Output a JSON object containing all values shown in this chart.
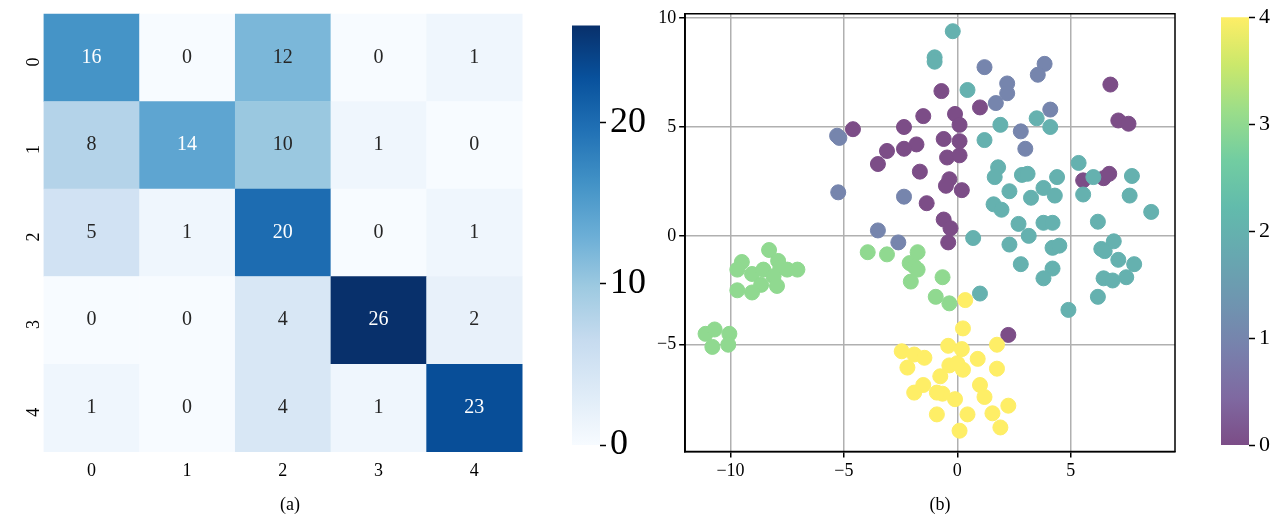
{
  "chart_data": [
    {
      "type": "heatmap",
      "categories": [
        "0",
        "1",
        "2",
        "3",
        "4"
      ],
      "y_categories": [
        "0",
        "1",
        "2",
        "3",
        "4"
      ],
      "cells": [
        [
          16,
          0,
          12,
          0,
          1
        ],
        [
          8,
          14,
          10,
          1,
          0
        ],
        [
          5,
          1,
          20,
          0,
          1
        ],
        [
          0,
          0,
          4,
          26,
          2
        ],
        [
          1,
          0,
          4,
          1,
          23
        ]
      ],
      "clim": [
        0,
        26
      ],
      "cticks": [
        0,
        10,
        20
      ],
      "data_labels": true,
      "annotations": [
        "(a)"
      ]
    },
    {
      "type": "scatter",
      "marker": "circle",
      "grid": true,
      "xlim": [
        -12,
        9.6
      ],
      "ylim": [
        -9.9,
        10.2
      ],
      "xticks": [
        -10,
        -5,
        0,
        5
      ],
      "yticks": [
        -5,
        0,
        5,
        10
      ],
      "clim": [
        0,
        4
      ],
      "cticks": [
        0,
        1,
        2,
        3,
        4
      ],
      "annotations": [
        "(b)"
      ],
      "x": [
        -0.7,
        -0.1,
        -1.5,
        -2.35,
        -4.6,
        -0.6,
        -1.8,
        -2.35,
        -3.1,
        -3.5,
        -0.45,
        0.1,
        -1.65,
        -0.35,
        -0.5,
        0.2,
        -1.35,
        -0.6,
        -0.3,
        -0.4,
        6.75,
        1.0,
        0.1,
        7.1,
        7.55,
        0.1,
        5.55,
        6.45,
        6.7,
        2.25,
        -5.3,
        -5.2,
        -5.25,
        -2.35,
        -3.5,
        -2.6,
        1.2,
        3.85,
        3.55,
        2.2,
        2.2,
        1.7,
        4.1,
        2.8,
        3.0,
        -0.2,
        -1.0,
        -1.0,
        0.45,
        1.9,
        3.5,
        4.1,
        1.2,
        5.35,
        1.8,
        1.65,
        2.85,
        3.1,
        4.4,
        6.0,
        7.7,
        2.3,
        3.25,
        3.8,
        4.3,
        5.55,
        7.6,
        1.6,
        1.95,
        8.55,
        2.7,
        3.8,
        4.2,
        6.2,
        3.15,
        0.7,
        2.3,
        4.2,
        4.5,
        6.35,
        6.5,
        6.9,
        7.1,
        7.8,
        2.8,
        4.2,
        3.8,
        6.45,
        6.85,
        7.45,
        6.2,
        4.9,
        1.0,
        -8.3,
        -9.5,
        -9.7,
        -9.05,
        -8.55,
        -7.9,
        -7.8,
        -7.5,
        -7.05,
        -8.1,
        -8.65,
        -7.95,
        -9.7,
        -9.05,
        -11.1,
        -10.7,
        -10.05,
        -10.1,
        -10.8,
        -3.95,
        -3.1,
        -1.75,
        -2.1,
        -1.9,
        -1.75,
        -2.05,
        -0.65,
        -0.95,
        -0.35,
        0.35,
        0.25,
        1.75,
        -0.4,
        0.2,
        0.9,
        -0.35,
        0.25,
        0.0,
        1.75,
        1.0,
        1.2,
        -0.1,
        -0.65,
        2.25,
        1.55,
        1.9,
        0.45,
        0.1,
        -2.45,
        -1.9,
        -1.45,
        -2.2,
        -1.5,
        -1.9,
        -0.9,
        -0.75,
        -0.9
      ],
      "values": [
        6.65,
        5.6,
        5.5,
        5.0,
        4.9,
        4.45,
        4.2,
        4.0,
        3.9,
        3.3,
        3.6,
        3.7,
        2.95,
        2.6,
        2.3,
        2.1,
        1.5,
        0.75,
        0.35,
        -0.3,
        6.95,
        5.9,
        5.1,
        5.3,
        5.15,
        4.35,
        2.55,
        2.65,
        2.85,
        -4.55,
        4.6,
        4.5,
        2.0,
        1.8,
        0.25,
        -0.3,
        7.75,
        7.9,
        7.4,
        7.0,
        6.55,
        6.1,
        5.8,
        4.8,
        4.0,
        9.4,
        8.2,
        8.0,
        6.7,
        5.1,
        5.4,
        5.0,
        4.4,
        3.35,
        3.15,
        2.7,
        2.8,
        2.85,
        2.7,
        2.7,
        2.75,
        2.05,
        1.75,
        2.2,
        1.85,
        1.9,
        1.85,
        1.45,
        1.2,
        1.1,
        0.55,
        0.6,
        0.6,
        0.65,
        0.0,
        -0.1,
        -0.4,
        -0.55,
        -0.45,
        -0.6,
        -0.7,
        -0.25,
        -1.1,
        -1.3,
        -1.3,
        -1.5,
        -1.95,
        -1.95,
        -2.05,
        -1.9,
        -2.8,
        -3.4,
        -2.65,
        -0.65,
        -1.2,
        -1.55,
        -1.75,
        -1.55,
        -1.15,
        -1.45,
        -1.55,
        -1.55,
        -1.85,
        -2.25,
        -2.3,
        -2.5,
        -2.6,
        -4.5,
        -4.3,
        -4.5,
        -5.0,
        -5.1,
        -0.75,
        -0.85,
        -0.75,
        -1.25,
        -1.4,
        -1.55,
        -2.1,
        -1.9,
        -2.8,
        -3.1,
        -2.95,
        -4.25,
        -5.0,
        -5.05,
        -5.2,
        -5.65,
        -5.95,
        -6.15,
        -5.85,
        -6.1,
        -6.85,
        -7.4,
        -7.5,
        -7.25,
        -7.8,
        -8.15,
        -8.8,
        -8.2,
        -8.95,
        -5.3,
        -5.45,
        -5.6,
        -6.05,
        -6.85,
        -7.2,
        -7.2,
        -6.45,
        -8.2
      ],
      "cvalues": [
        0,
        0,
        0,
        0,
        0,
        0,
        0,
        0,
        0,
        0,
        0,
        0,
        0,
        0,
        0,
        0,
        0,
        0,
        0,
        0,
        0,
        0,
        0,
        0,
        0,
        0,
        0,
        0,
        0,
        0,
        1,
        1,
        1,
        1,
        1,
        1,
        1,
        1,
        1,
        1,
        1,
        1,
        1,
        1,
        1,
        2,
        2,
        2,
        2,
        2,
        2,
        2,
        2,
        2,
        2,
        2,
        2,
        2,
        2,
        2,
        2,
        2,
        2,
        2,
        2,
        2,
        2,
        2,
        2,
        2,
        2,
        2,
        2,
        2,
        2,
        2,
        2,
        2,
        2,
        2,
        2,
        2,
        2,
        2,
        2,
        2,
        2,
        2,
        2,
        2,
        2,
        2,
        2,
        3,
        3,
        3,
        3,
        3,
        3,
        3,
        3,
        3,
        3,
        3,
        3,
        3,
        3,
        3,
        3,
        3,
        3,
        3,
        3,
        3,
        3,
        3,
        3,
        3,
        3,
        3,
        3,
        3,
        4,
        4,
        4,
        4,
        4,
        4,
        4,
        4,
        4,
        4,
        4,
        4,
        4,
        4,
        4,
        4,
        4,
        4,
        4,
        4,
        4,
        4,
        4,
        4,
        4,
        4,
        4,
        4
      ]
    }
  ]
}
